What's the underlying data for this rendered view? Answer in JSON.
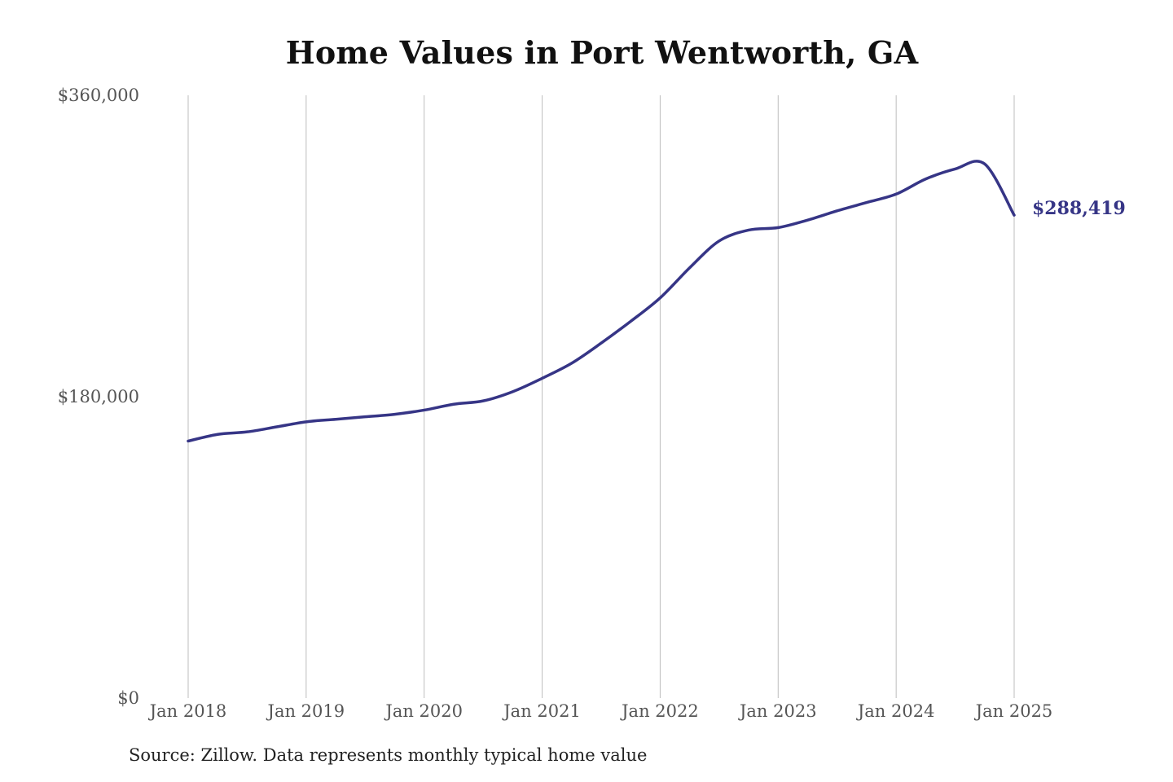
{
  "chart_data": {
    "type": "line",
    "title": "Home Values in Port Wentworth, GA",
    "source": "Source: Zillow. Data represents monthly typical home value",
    "xlabel": "",
    "ylabel": "",
    "ylim": [
      0,
      360000
    ],
    "y_ticks": [
      {
        "value": 0,
        "label": "$0"
      },
      {
        "value": 180000,
        "label": "$180,000"
      },
      {
        "value": 360000,
        "label": "$360,000"
      }
    ],
    "x_ticks": [
      {
        "value": 2018,
        "label": "Jan 2018"
      },
      {
        "value": 2019,
        "label": "Jan 2019"
      },
      {
        "value": 2020,
        "label": "Jan 2020"
      },
      {
        "value": 2021,
        "label": "Jan 2021"
      },
      {
        "value": 2022,
        "label": "Jan 2022"
      },
      {
        "value": 2023,
        "label": "Jan 2023"
      },
      {
        "value": 2024,
        "label": "Jan 2024"
      },
      {
        "value": 2025,
        "label": "Jan 2025"
      }
    ],
    "xlim": [
      2018,
      2025
    ],
    "grid": {
      "vertical": true,
      "horizontal": false
    },
    "line_color": "#363586",
    "end_label": "$288,419",
    "series": [
      {
        "points": [
          [
            2018.0,
            153500
          ],
          [
            2018.25,
            157500
          ],
          [
            2018.5,
            159000
          ],
          [
            2018.75,
            162000
          ],
          [
            2019.0,
            165000
          ],
          [
            2019.25,
            166500
          ],
          [
            2019.5,
            168000
          ],
          [
            2019.75,
            169500
          ],
          [
            2020.0,
            172000
          ],
          [
            2020.25,
            175500
          ],
          [
            2020.5,
            177500
          ],
          [
            2020.75,
            183000
          ],
          [
            2021.0,
            191000
          ],
          [
            2021.25,
            200000
          ],
          [
            2021.5,
            212000
          ],
          [
            2021.75,
            225000
          ],
          [
            2022.0,
            239000
          ],
          [
            2022.25,
            257000
          ],
          [
            2022.5,
            273000
          ],
          [
            2022.75,
            279500
          ],
          [
            2023.0,
            281000
          ],
          [
            2023.25,
            285500
          ],
          [
            2023.5,
            291000
          ],
          [
            2023.75,
            296000
          ],
          [
            2024.0,
            301000
          ],
          [
            2024.25,
            310000
          ],
          [
            2024.5,
            316000
          ],
          [
            2024.75,
            319000
          ],
          [
            2025.0,
            288419
          ]
        ]
      }
    ]
  }
}
